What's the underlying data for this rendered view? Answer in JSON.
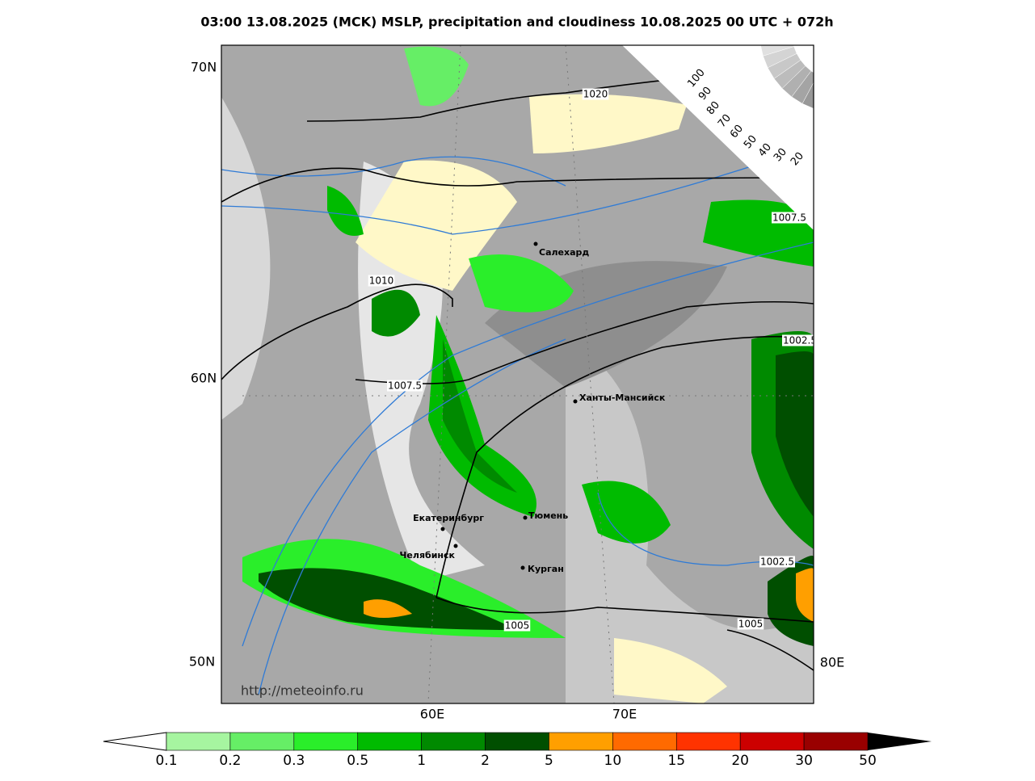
{
  "title": "03:00 13.08.2025 (MCK) MSLP, precipitation and cloudiness 10.08.2025 00 UTC + 072h",
  "map": {
    "lat_labels": [
      "70N",
      "60N",
      "50N"
    ],
    "lon_labels": [
      "60E",
      "70E",
      "80E"
    ],
    "isobar_labels": [
      "1020",
      "1010",
      "1007.5",
      "1007.5",
      "1002.5",
      "1005",
      "1005",
      "1002.5"
    ],
    "cities": [
      "Салехард",
      "Ханты-Мансийск",
      "Тюмень",
      "Екатеринбург",
      "Челябинск",
      "Курган"
    ],
    "watermark": "http://meteoinfo.ru"
  },
  "cloud_scale": {
    "labels": [
      "100",
      "90",
      "80",
      "70",
      "60",
      "50",
      "40",
      "30",
      "20"
    ]
  },
  "colorbar": {
    "labels": [
      "0.1",
      "0.2",
      "0.3",
      "0.5",
      "1",
      "2",
      "5",
      "10",
      "15",
      "20",
      "30",
      "50"
    ],
    "colors": [
      "#a6f5a0",
      "#66ee66",
      "#2aee2a",
      "#00bb00",
      "#008a00",
      "#004f00",
      "#ff9f00",
      "#ff6a00",
      "#ff3300",
      "#cc0000",
      "#990000"
    ]
  }
}
